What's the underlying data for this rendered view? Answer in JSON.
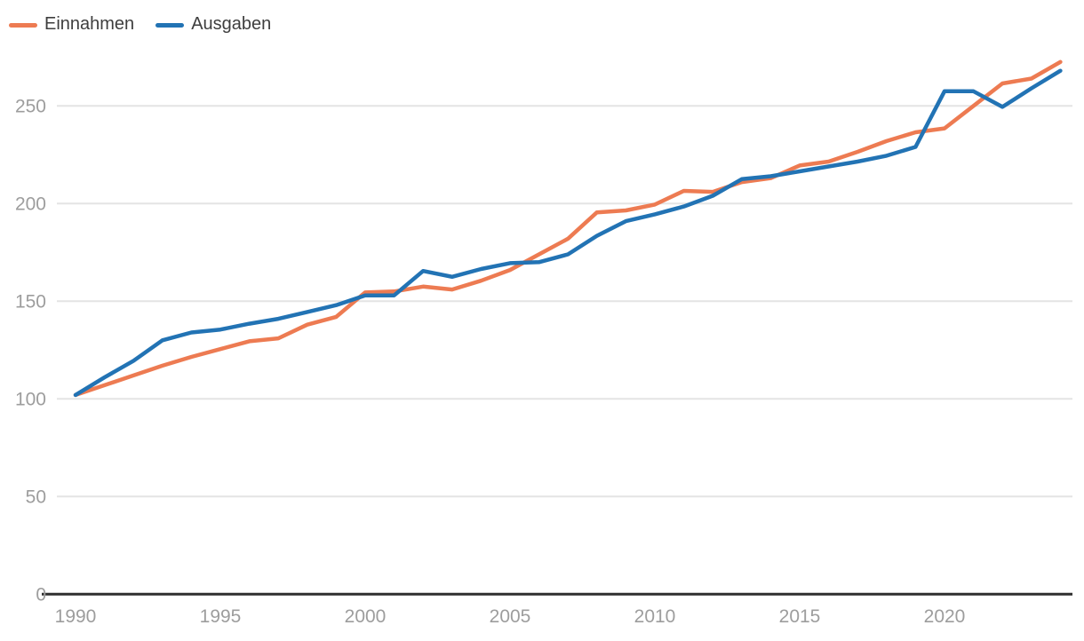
{
  "legend": {
    "items": [
      {
        "label": "Einnahmen",
        "color": "#ED7B52"
      },
      {
        "label": "Ausgaben",
        "color": "#2273B4"
      }
    ]
  },
  "chart_data": {
    "type": "line",
    "title": "",
    "xlabel": "",
    "ylabel": "",
    "x": [
      1990,
      1991,
      1992,
      1993,
      1994,
      1995,
      1996,
      1997,
      1998,
      1999,
      2000,
      2001,
      2002,
      2003,
      2004,
      2005,
      2006,
      2007,
      2008,
      2009,
      2010,
      2011,
      2012,
      2013,
      2014,
      2015,
      2016,
      2017,
      2018,
      2019,
      2020,
      2021,
      2022,
      2023,
      2024
    ],
    "series": [
      {
        "name": "Einnahmen",
        "color": "#ED7B52",
        "values": [
          102,
          107,
          112,
          117,
          121.5,
          125.5,
          129.5,
          131,
          138,
          142,
          154.5,
          155,
          157.5,
          156,
          160.5,
          166,
          174,
          182,
          195.5,
          196.5,
          199.5,
          206.5,
          206,
          211,
          213,
          219.5,
          221.5,
          226.5,
          232,
          236.5,
          238.5,
          250,
          261.5,
          264,
          272.5
        ]
      },
      {
        "name": "Ausgaben",
        "color": "#2273B4",
        "values": [
          102,
          111,
          119.5,
          130,
          134,
          135.5,
          138.5,
          141,
          144.5,
          148,
          153,
          153,
          165.5,
          162.5,
          166.5,
          169.5,
          170,
          174,
          183.5,
          191,
          194.5,
          198.5,
          204,
          212.5,
          214,
          216.5,
          219,
          221.5,
          224.5,
          229,
          257.5,
          257.5,
          249.5,
          259,
          268
        ]
      }
    ],
    "x_ticks": [
      1990,
      1995,
      2000,
      2005,
      2010,
      2015,
      2020
    ],
    "y_ticks": [
      0,
      50,
      100,
      150,
      200,
      250
    ],
    "xlim": [
      1990,
      2024
    ],
    "ylim": [
      0,
      275
    ],
    "grid": "horizontal",
    "legend_position": "top-left",
    "style": {
      "axis_label_color": "#9D9D9D",
      "gridline_color": "#E4E4E4",
      "axis_line_color": "#2E2E2E",
      "legend_text_color": "#3E3E3E"
    }
  }
}
